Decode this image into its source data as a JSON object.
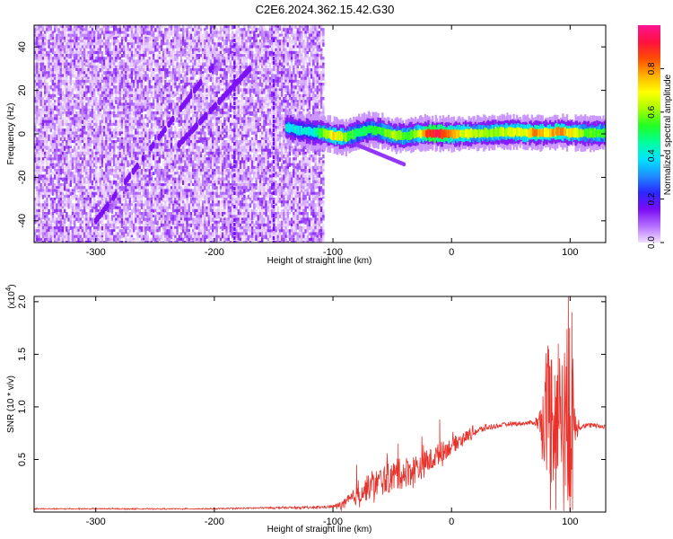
{
  "title": "C2E6.2024.362.15.42.G30",
  "chart_data": [
    {
      "type": "heatmap",
      "xlabel": "Height of straight line (km)",
      "ylabel": "Frequency (Hz)",
      "xlim": [
        -352,
        130
      ],
      "ylim": [
        -50,
        50
      ],
      "xticks": [
        -300,
        -200,
        -100,
        0,
        100
      ],
      "yticks": [
        -40,
        -20,
        0,
        20,
        40
      ],
      "colorbar": {
        "label": "Normalized spectral amplitude",
        "range": [
          0,
          1
        ],
        "ticks": [
          0.0,
          0.2,
          0.4,
          0.6,
          0.8
        ],
        "colors": [
          "#f2e0ff",
          "#b46cff",
          "#7a0cf5",
          "#2a28ff",
          "#1e8fff",
          "#00e5ff",
          "#00ff9a",
          "#22ff22",
          "#aaff00",
          "#ffff00",
          "#ffb000",
          "#ff4d00",
          "#ff1040",
          "#ff1493"
        ]
      },
      "features": {
        "noise_region": {
          "x_range": [
            -352,
            -108
          ],
          "amplitude_range": [
            0.0,
            0.15
          ]
        },
        "vertical_streaks_x": [
          -150,
          -183
        ],
        "diagonal_streaks": [
          {
            "x": [
              -300,
              -200
            ],
            "y": [
              -40,
              32
            ]
          },
          {
            "x": [
              -230,
              -170
            ],
            "y": [
              -5,
              30
            ]
          }
        ],
        "signal_track": {
          "points": [
            {
              "x": -140,
              "f": 3.0,
              "amp": 0.42
            },
            {
              "x": -130,
              "f": 1.8,
              "amp": 0.38
            },
            {
              "x": -120,
              "f": 1.0,
              "amp": 0.4
            },
            {
              "x": -110,
              "f": 0.5,
              "amp": 0.55
            },
            {
              "x": -100,
              "f": -0.8,
              "amp": 0.72
            },
            {
              "x": -90,
              "f": -1.5,
              "amp": 0.6
            },
            {
              "x": -80,
              "f": 0.5,
              "amp": 0.5
            },
            {
              "x": -70,
              "f": 2.0,
              "amp": 0.48
            },
            {
              "x": -60,
              "f": 1.2,
              "amp": 0.55
            },
            {
              "x": -50,
              "f": -0.5,
              "amp": 0.62
            },
            {
              "x": -40,
              "f": -1.0,
              "amp": 0.55
            },
            {
              "x": -30,
              "f": 0.0,
              "amp": 0.58
            },
            {
              "x": -20,
              "f": 0.3,
              "amp": 0.9
            },
            {
              "x": -10,
              "f": 0.0,
              "amp": 0.92
            },
            {
              "x": 0,
              "f": 0.0,
              "amp": 0.75
            },
            {
              "x": 10,
              "f": 0.0,
              "amp": 0.68
            },
            {
              "x": 20,
              "f": 0.3,
              "amp": 0.62
            },
            {
              "x": 30,
              "f": 0.5,
              "amp": 0.6
            },
            {
              "x": 40,
              "f": 0.8,
              "amp": 0.62
            },
            {
              "x": 50,
              "f": 1.0,
              "amp": 0.66
            },
            {
              "x": 60,
              "f": 0.6,
              "amp": 0.65
            },
            {
              "x": 70,
              "f": 0.5,
              "amp": 0.8
            },
            {
              "x": 80,
              "f": 0.5,
              "amp": 0.72
            },
            {
              "x": 90,
              "f": 1.0,
              "amp": 0.8
            },
            {
              "x": 100,
              "f": 0.5,
              "amp": 0.7
            },
            {
              "x": 110,
              "f": 0.3,
              "amp": 0.58
            },
            {
              "x": 130,
              "f": 0.3,
              "amp": 0.55
            }
          ],
          "width_hz": 3.5
        },
        "faint_branch": {
          "x": [
            -80,
            -40
          ],
          "f": [
            -5,
            -14
          ]
        }
      }
    },
    {
      "type": "line",
      "xlabel": "Height of straight line (km)",
      "ylabel": "SNR (10 * v/v)",
      "yscale_label": "(x10",
      "yscale_exponent": "4",
      "xlim": [
        -352,
        130
      ],
      "ylim": [
        0,
        2.05
      ],
      "xticks": [
        -300,
        -200,
        -100,
        0,
        100
      ],
      "yticks": [
        0.5,
        1.0,
        1.5,
        2.0
      ],
      "ytick_labels": [
        "0.5",
        "1.0",
        "1.5",
        "2.0"
      ],
      "series": [
        {
          "color": "#e8312a",
          "x": [
            -352,
            -300,
            -250,
            -200,
            -150,
            -120,
            -100,
            -90,
            -80,
            -70,
            -60,
            -50,
            -40,
            -30,
            -20,
            -10,
            0,
            10,
            20,
            30,
            40,
            50,
            60,
            70,
            75,
            80,
            85,
            90,
            95,
            100,
            105,
            110,
            120,
            130
          ],
          "y": [
            0.03,
            0.03,
            0.03,
            0.03,
            0.04,
            0.04,
            0.05,
            0.07,
            0.15,
            0.22,
            0.28,
            0.32,
            0.36,
            0.4,
            0.46,
            0.55,
            0.62,
            0.7,
            0.76,
            0.8,
            0.82,
            0.84,
            0.84,
            0.85,
            0.85,
            0.86,
            0.86,
            0.86,
            0.85,
            0.84,
            0.82,
            0.82,
            0.82,
            0.81
          ],
          "noise_amplitude": [
            0.005,
            0.005,
            0.005,
            0.005,
            0.008,
            0.01,
            0.015,
            0.05,
            0.09,
            0.12,
            0.14,
            0.15,
            0.15,
            0.14,
            0.12,
            0.1,
            0.08,
            0.06,
            0.04,
            0.03,
            0.02,
            0.02,
            0.02,
            0.02,
            0.15,
            0.55,
            0.7,
            0.6,
            0.7,
            1.0,
            0.1,
            0.03,
            0.02,
            0.02
          ],
          "spikes": [
            {
              "x": 98.5,
              "y": 2.05
            },
            {
              "x": 99.5,
              "y": 1.75
            },
            {
              "x": 101.5,
              "y": 1.9
            },
            {
              "x": 82,
              "y": 1.55
            },
            {
              "x": 83,
              "y": 1.38
            },
            {
              "x": 83.5,
              "y": 0.02
            },
            {
              "x": 87,
              "y": 1.3
            },
            {
              "x": 84,
              "y": 1.45
            },
            {
              "x": 90,
              "y": 1.6
            },
            {
              "x": 95,
              "y": 1.2
            },
            {
              "x": 92,
              "y": 1.1
            },
            {
              "x": 79,
              "y": 1.2
            },
            {
              "x": 88,
              "y": 0.02
            },
            {
              "x": 96,
              "y": 0.25
            },
            {
              "x": 102,
              "y": 0.02
            },
            {
              "x": -10,
              "y": 0.88
            },
            {
              "x": -25,
              "y": 0.72
            },
            {
              "x": -45,
              "y": 0.65
            },
            {
              "x": -80,
              "y": 0.45
            }
          ]
        }
      ]
    }
  ]
}
